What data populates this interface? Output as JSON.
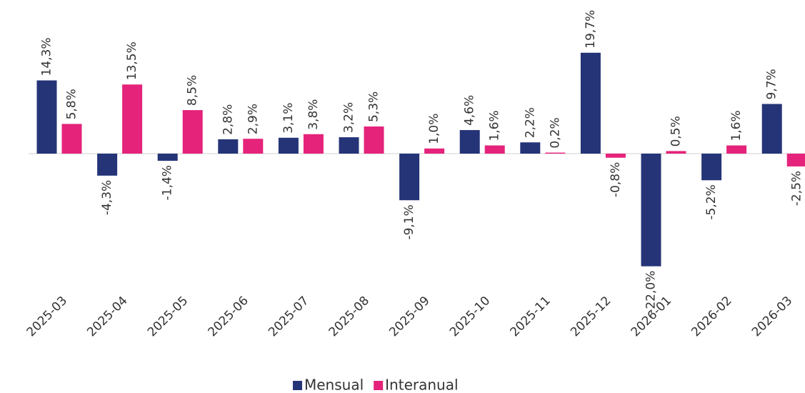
{
  "chart_data": {
    "type": "bar",
    "categories": [
      "2025-03",
      "2025-04",
      "2025-05",
      "2025-06",
      "2025-07",
      "2025-08",
      "2025-09",
      "2025-10",
      "2025-11",
      "2025-12",
      "2026-01",
      "2026-02",
      "2026-03"
    ],
    "series": [
      {
        "name": "Mensual",
        "color": "#253477",
        "values": [
          14.3,
          -4.3,
          -1.4,
          2.8,
          3.1,
          3.2,
          -9.1,
          4.6,
          2.2,
          19.7,
          -22.0,
          -5.2,
          9.7
        ],
        "value_labels": [
          "14,3%",
          "-4,3%",
          "-1,4%",
          "2,8%",
          "3,1%",
          "3,2%",
          "-9,1%",
          "4,6%",
          "2,2%",
          "19,7%",
          "-22,0%",
          "-5,2%",
          "9,7%"
        ]
      },
      {
        "name": "Interanual",
        "color": "#e5237a",
        "values": [
          5.8,
          13.5,
          8.5,
          2.9,
          3.8,
          5.3,
          1.0,
          1.6,
          0.2,
          -0.8,
          0.5,
          1.6,
          -2.5
        ],
        "value_labels": [
          "5,8%",
          "13,5%",
          "8,5%",
          "2,9%",
          "3,8%",
          "5,3%",
          "1,0%",
          "1,6%",
          "0,2%",
          "-0,8%",
          "0,5%",
          "1,6%",
          "-2,5%"
        ]
      }
    ],
    "ylim": [
      -30,
      30
    ],
    "legend": "bottom"
  }
}
